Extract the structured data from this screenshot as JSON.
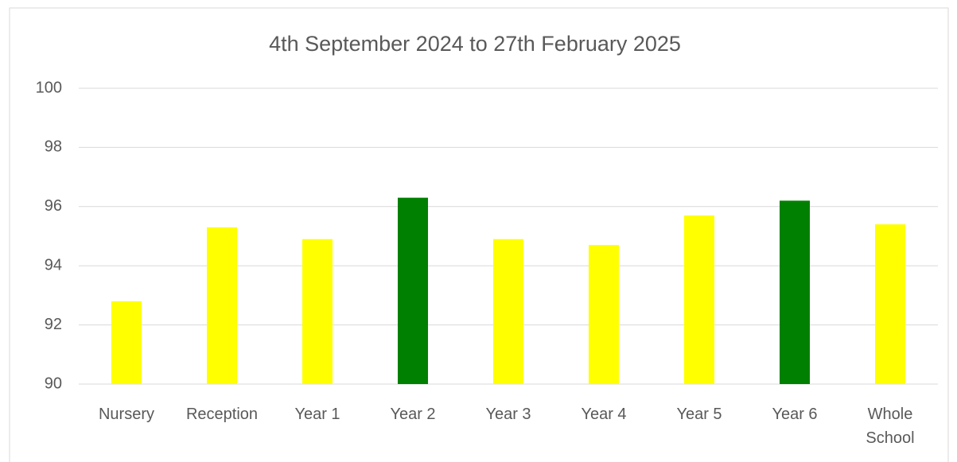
{
  "chart_data": {
    "type": "bar",
    "title": "4th September 2024 to 27th February 2025",
    "categories": [
      "Nursery",
      "Reception",
      "Year 1",
      "Year 2",
      "Year 3",
      "Year 4",
      "Year 5",
      "Year 6",
      "Whole School"
    ],
    "values": [
      92.8,
      95.3,
      94.9,
      96.3,
      94.9,
      94.7,
      95.7,
      96.2,
      95.4
    ],
    "colors": [
      "#ffff00",
      "#ffff00",
      "#ffff00",
      "#008000",
      "#ffff00",
      "#ffff00",
      "#ffff00",
      "#008000",
      "#ffff00"
    ],
    "ylim": [
      90,
      100
    ],
    "yticks": [
      90,
      92,
      94,
      96,
      98,
      100
    ],
    "grid": true
  }
}
